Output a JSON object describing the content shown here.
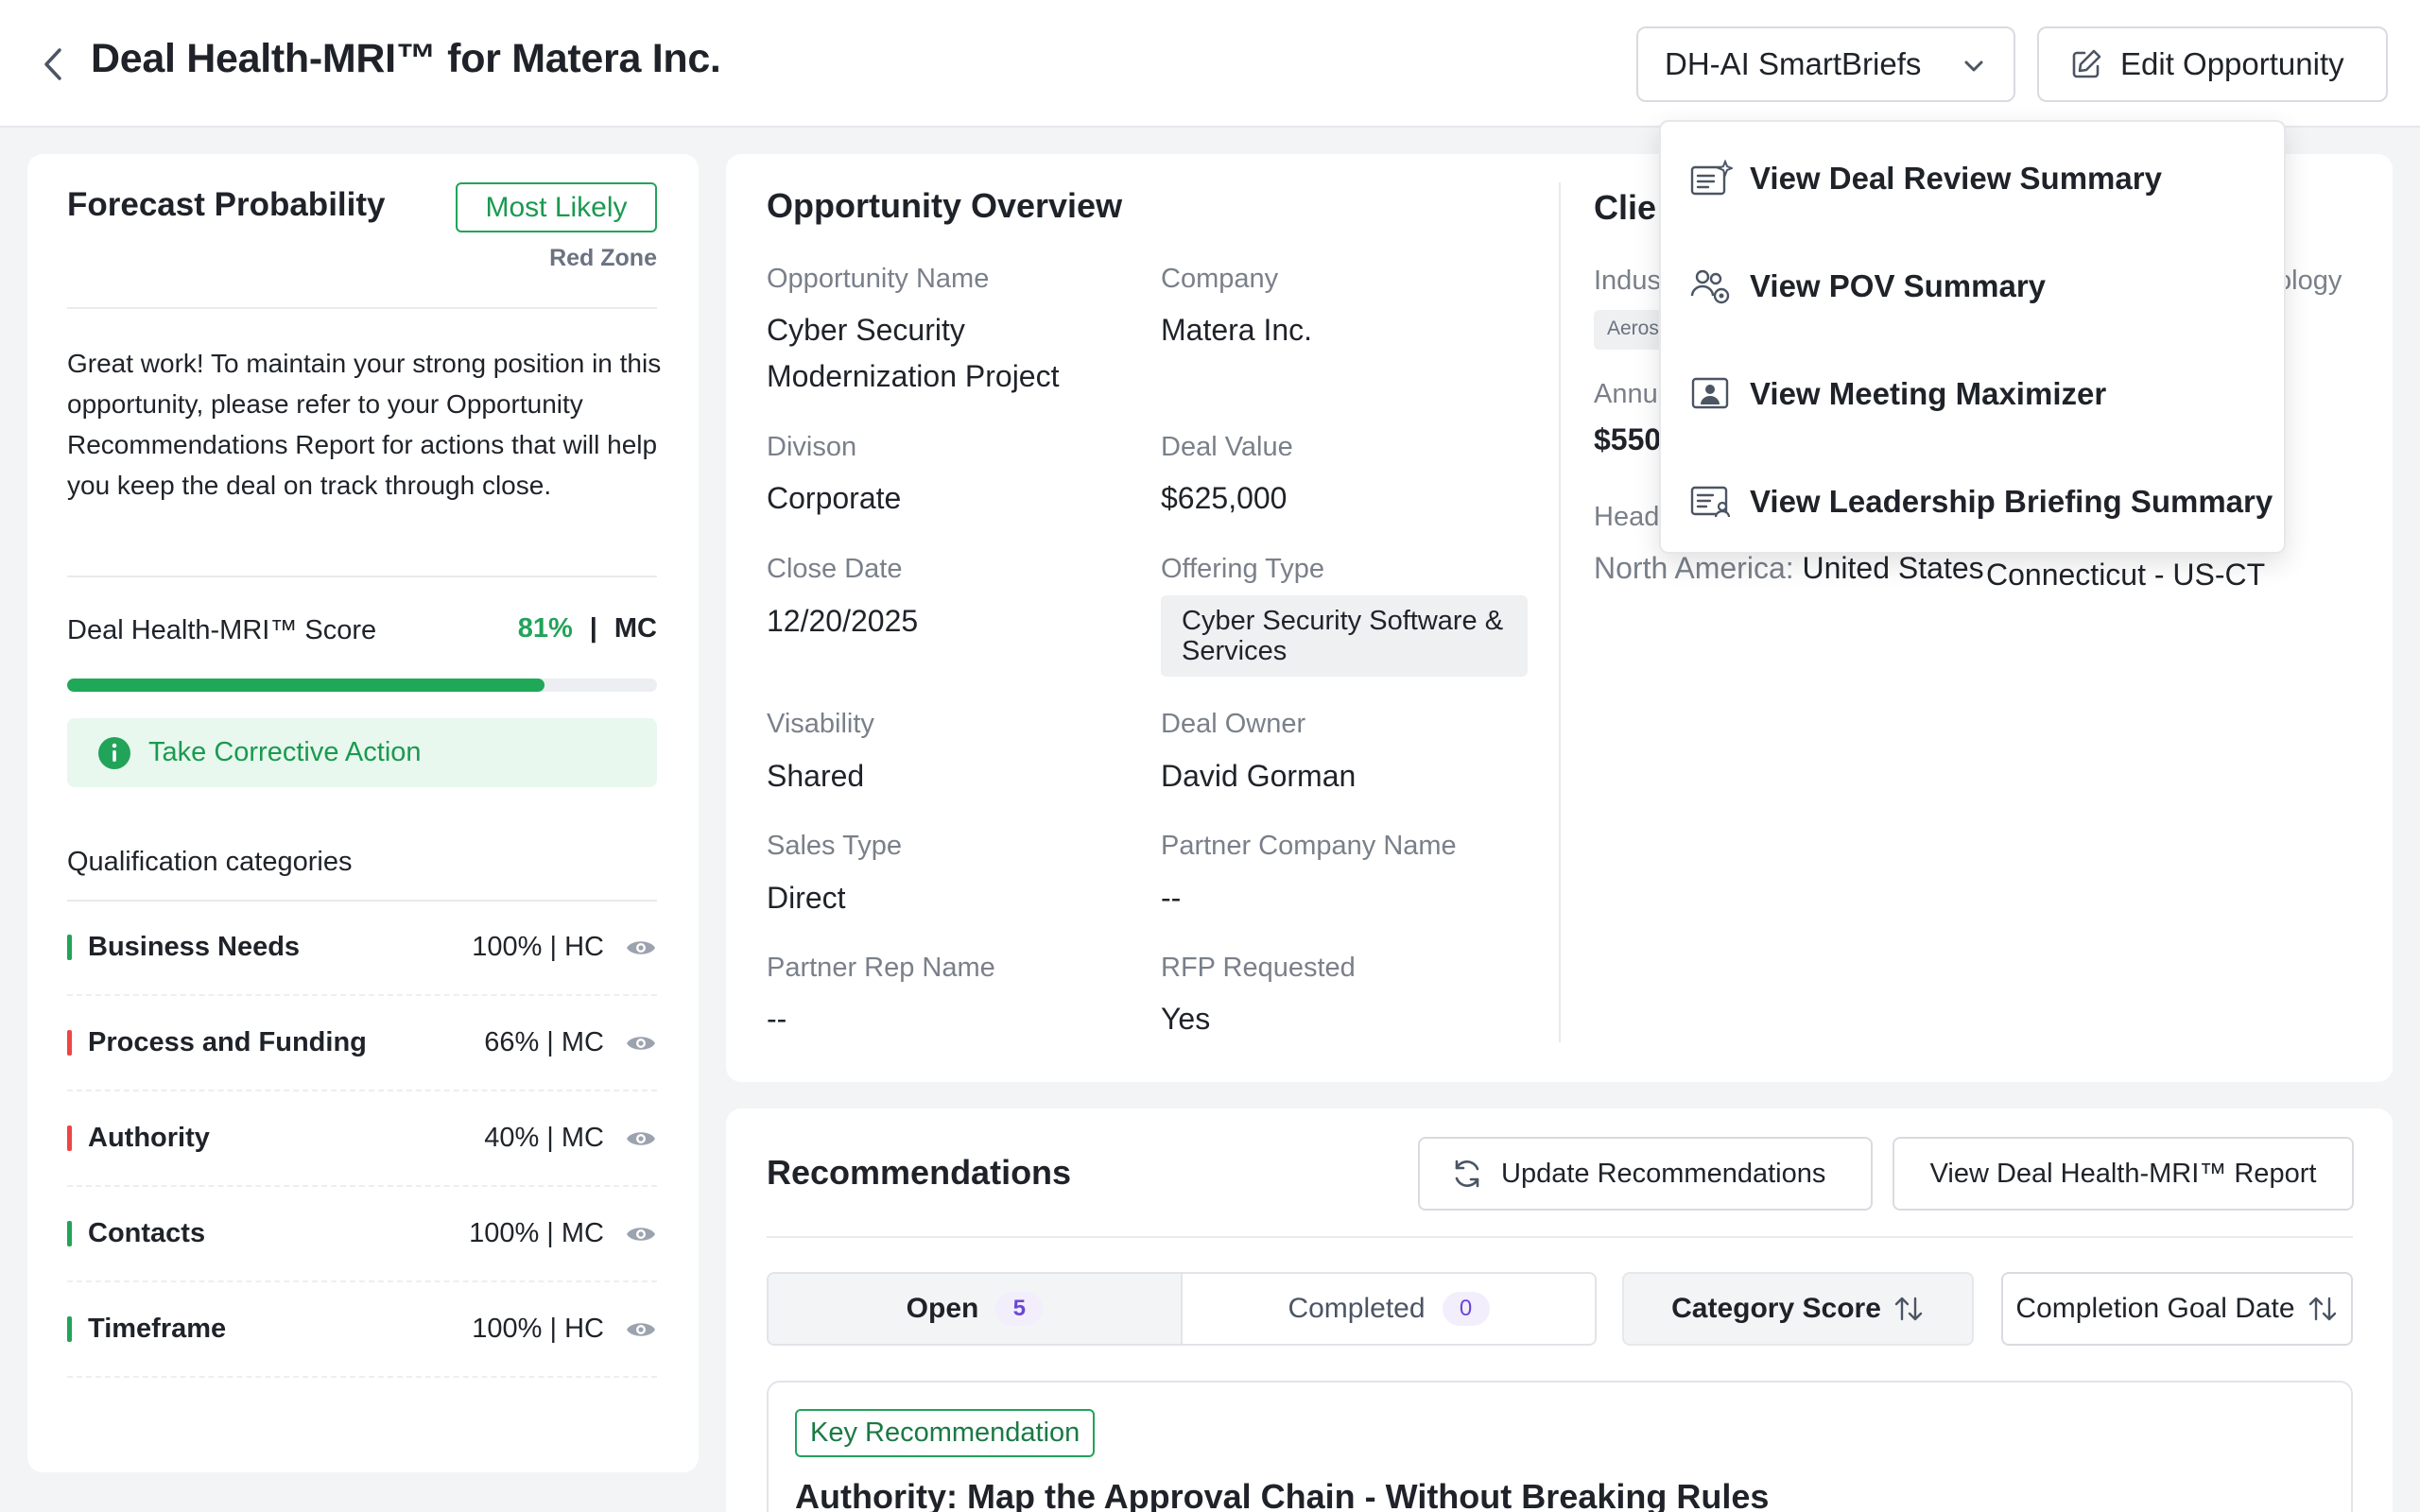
{
  "header": {
    "title": "Deal Health-MRI™ for Matera Inc.",
    "smartbriefs_label": "DH-AI SmartBriefs",
    "edit_label": "Edit Opportunity"
  },
  "smartbriefs_menu": {
    "items": [
      {
        "label": "View Deal Review Summary",
        "icon": "sparkle-document-icon"
      },
      {
        "label": "View POV Summary",
        "icon": "people-view-icon"
      },
      {
        "label": "View Meeting Maximizer",
        "icon": "user-frame-icon"
      },
      {
        "label": "View Leadership Briefing Summary",
        "icon": "profile-card-icon"
      }
    ]
  },
  "forecast": {
    "title": "Forecast Probability",
    "badge": "Most Likely",
    "zone": "Red Zone",
    "message": "Great work! To maintain your strong position in this opportunity, please refer to your Opportunity Recommendations Report for actions that will help you keep the deal on track through close.",
    "score_label": "Deal Health-MRI™ Score",
    "score_pct": "81%",
    "score_sep": "|",
    "score_level": "MC",
    "score_fraction": 0.81,
    "corrective_label": "Take Corrective Action",
    "qual_title": "Qualification categories",
    "categories": [
      {
        "name": "Business Needs",
        "score": "100% | HC",
        "status_color": "#22a35a"
      },
      {
        "name": "Process and Funding",
        "score": "66% | MC",
        "status_color": "#ef4444"
      },
      {
        "name": "Authority",
        "score": "40% | MC",
        "status_color": "#ef4444"
      },
      {
        "name": "Contacts",
        "score": "100% | MC",
        "status_color": "#22a35a"
      },
      {
        "name": "Timeframe",
        "score": "100% | HC",
        "status_color": "#22a35a"
      }
    ]
  },
  "overview": {
    "title": "Opportunity Overview",
    "opportunity_name_label": "Opportunity Name",
    "opportunity_name": "Cyber Security Modernization Project",
    "company_label": "Company",
    "company": "Matera Inc.",
    "division_label": "Divison",
    "division": "Corporate",
    "deal_value_label": "Deal Value",
    "deal_value": "$625,000",
    "close_date_label": "Close Date",
    "close_date": "12/20/2025",
    "offering_type_label": "Offering Type",
    "offering_type": "Cyber Security Software & Services",
    "visibility_label": "Visability",
    "visibility": "Shared",
    "deal_owner_label": "Deal Owner",
    "deal_owner": "David Gorman",
    "sales_type_label": "Sales Type",
    "sales_type": "Direct",
    "partner_company_label": "Partner Company Name",
    "partner_company": "--",
    "partner_rep_label": "Partner Rep Name",
    "partner_rep": "--",
    "rfp_label": "RFP Requested",
    "rfp": "Yes"
  },
  "client": {
    "title": "Clie",
    "industry_label": "Indus",
    "industry_chip": "Aeros",
    "tech_label_fragment": "ology",
    "annual_label": "Annu",
    "annual_value": "$550",
    "hq_label": "Head",
    "hq_region_label": "North America:",
    "hq_region_value": "United States",
    "hq_state": "Connecticut - US-CT"
  },
  "recommendations": {
    "title": "Recommendations",
    "update_label": "Update Recommendations",
    "report_label": "View Deal Health-MRI™ Report",
    "tab_open": "Open",
    "tab_open_count": "5",
    "tab_completed": "Completed",
    "tab_completed_count": "0",
    "sort_category": "Category Score",
    "sort_date": "Completion Goal Date",
    "key_badge": "Key Recommendation",
    "key_title": "Authority: Map the Approval Chain - Without Breaking Rules"
  },
  "colors": {
    "accent_green": "#22a35a",
    "alert_red": "#ef4444",
    "count_purple": "#6b46d6"
  }
}
